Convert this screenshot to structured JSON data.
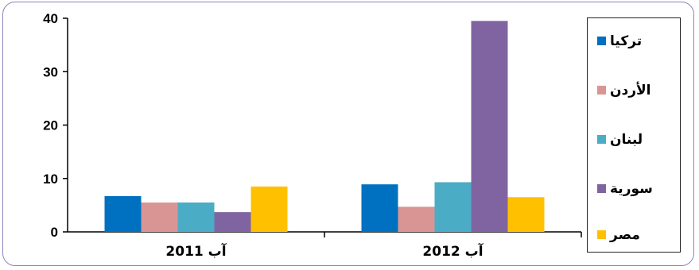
{
  "chart_data": {
    "type": "bar",
    "categories": [
      "آب 2011",
      "آب 2012"
    ],
    "series": [
      {
        "name": "تركيا",
        "color": "#0070c0",
        "values": [
          6.7,
          8.9
        ]
      },
      {
        "name": "الأردن",
        "color": "#d99594",
        "values": [
          5.5,
          4.7
        ]
      },
      {
        "name": "لبنان",
        "color": "#4bacc6",
        "values": [
          5.5,
          9.3
        ]
      },
      {
        "name": "سورية",
        "color": "#8064a2",
        "values": [
          3.7,
          39.5
        ]
      },
      {
        "name": "مصر",
        "color": "#ffc000",
        "values": [
          8.5,
          6.5
        ]
      }
    ],
    "yticks": [
      "0",
      "10",
      "20",
      "30",
      "40"
    ],
    "ylim": [
      0,
      40
    ],
    "grid": false,
    "legend_position": "right"
  }
}
